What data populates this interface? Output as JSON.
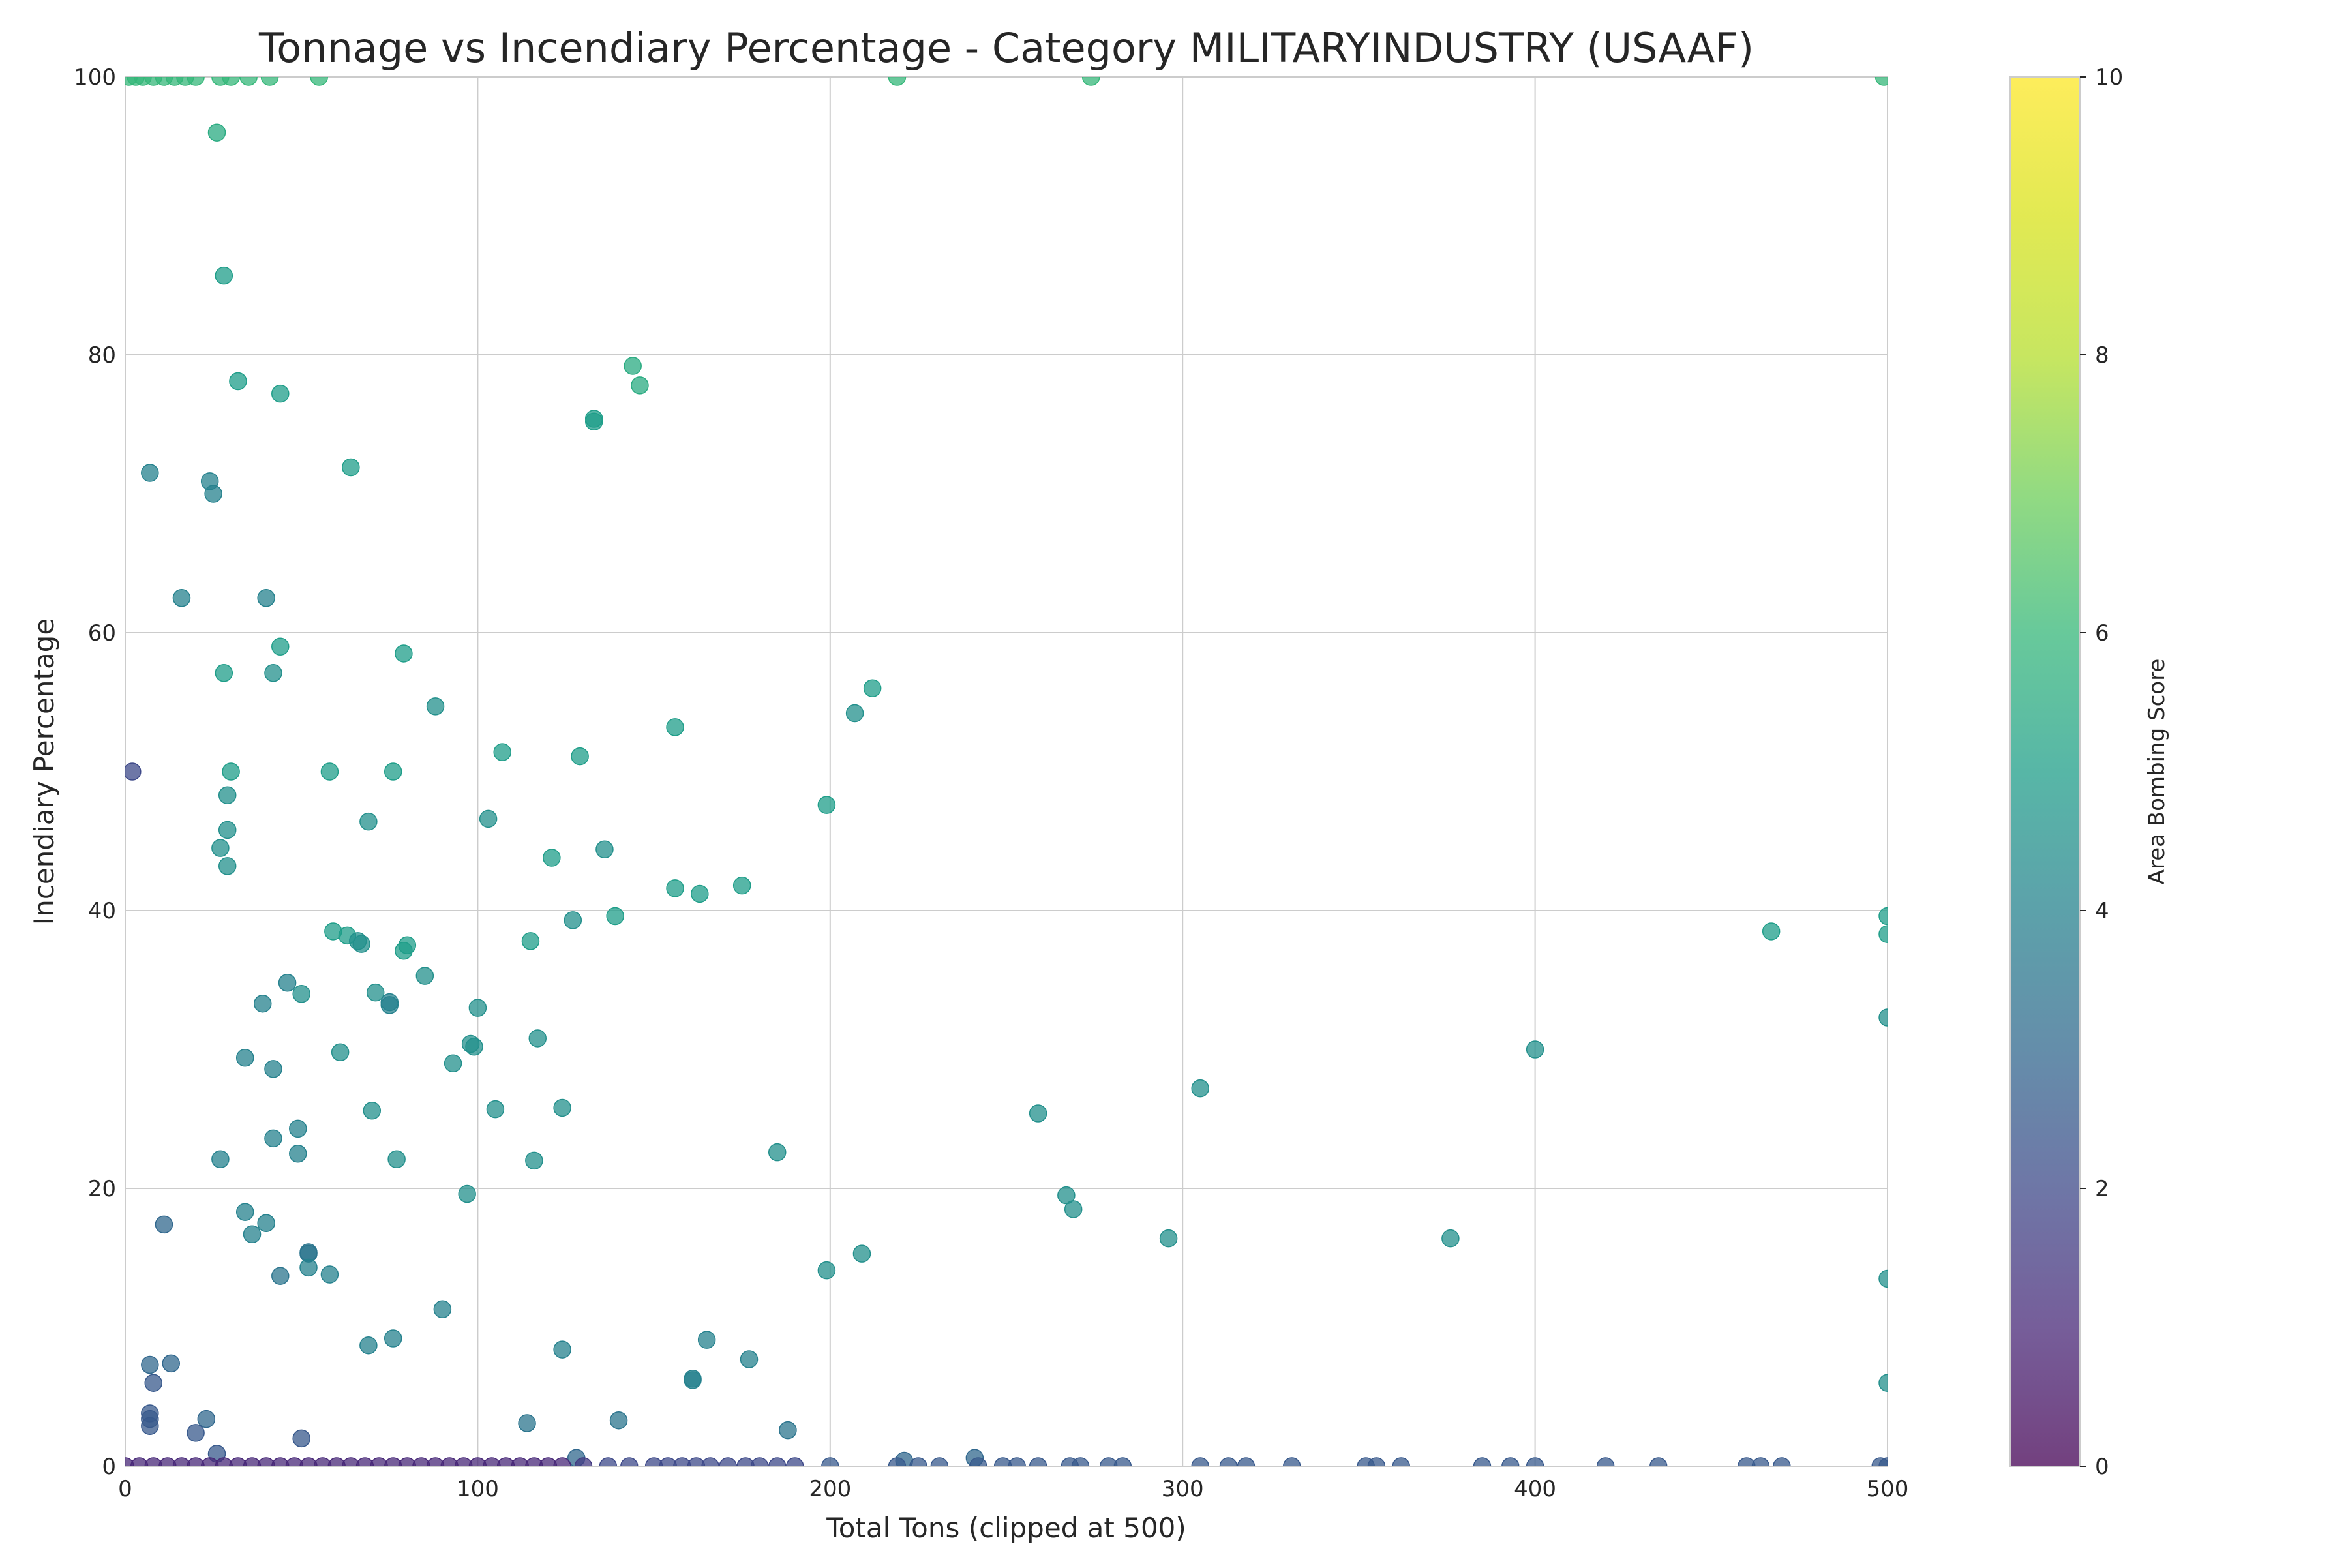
{
  "chart_data": {
    "type": "scatter",
    "title": "Tonnage vs Incendiary Percentage - Category MILITARYINDUSTRY (USAAF)",
    "xlabel": "Total Tons (clipped at 500)",
    "ylabel": "Incendiary Percentage",
    "xlim": [
      0,
      500
    ],
    "ylim": [
      0,
      100
    ],
    "xticks": [
      "0",
      "100",
      "200",
      "300",
      "400",
      "500"
    ],
    "yticks": [
      "0",
      "20",
      "40",
      "60",
      "80",
      "100"
    ],
    "grid": true,
    "colormap": "viridis",
    "colorbar": {
      "label": "Area Bombing Score",
      "range": [
        0,
        10
      ],
      "ticks": [
        "0",
        "2",
        "4",
        "6",
        "8",
        "10"
      ]
    },
    "points": [
      {
        "x": 1,
        "y": 100,
        "c": 6
      },
      {
        "x": 3,
        "y": 100,
        "c": 6
      },
      {
        "x": 5,
        "y": 100,
        "c": 6
      },
      {
        "x": 8,
        "y": 100,
        "c": 6
      },
      {
        "x": 11,
        "y": 100,
        "c": 6
      },
      {
        "x": 14,
        "y": 100,
        "c": 6
      },
      {
        "x": 17,
        "y": 100,
        "c": 6
      },
      {
        "x": 20,
        "y": 100,
        "c": 6
      },
      {
        "x": 27,
        "y": 100,
        "c": 6
      },
      {
        "x": 30,
        "y": 100,
        "c": 6
      },
      {
        "x": 35,
        "y": 100,
        "c": 6
      },
      {
        "x": 41,
        "y": 100,
        "c": 6
      },
      {
        "x": 55,
        "y": 100,
        "c": 6
      },
      {
        "x": 219,
        "y": 100,
        "c": 6
      },
      {
        "x": 274,
        "y": 100,
        "c": 6
      },
      {
        "x": 499,
        "y": 100,
        "c": 6
      },
      {
        "x": 26,
        "y": 96,
        "c": 5.5
      },
      {
        "x": 28,
        "y": 85.7,
        "c": 5
      },
      {
        "x": 144,
        "y": 79.2,
        "c": 5.5
      },
      {
        "x": 32,
        "y": 78.1,
        "c": 5
      },
      {
        "x": 146,
        "y": 77.8,
        "c": 5.5
      },
      {
        "x": 44,
        "y": 77.2,
        "c": 5
      },
      {
        "x": 133,
        "y": 75.4,
        "c": 5
      },
      {
        "x": 133,
        "y": 75.2,
        "c": 5
      },
      {
        "x": 64,
        "y": 71.9,
        "c": 5
      },
      {
        "x": 7,
        "y": 71.5,
        "c": 4
      },
      {
        "x": 24,
        "y": 70.9,
        "c": 4
      },
      {
        "x": 25,
        "y": 70,
        "c": 4
      },
      {
        "x": 16,
        "y": 62.5,
        "c": 4
      },
      {
        "x": 40,
        "y": 62.5,
        "c": 4
      },
      {
        "x": 44,
        "y": 59,
        "c": 5
      },
      {
        "x": 79,
        "y": 58.5,
        "c": 5
      },
      {
        "x": 28,
        "y": 57.1,
        "c": 5
      },
      {
        "x": 42,
        "y": 57.1,
        "c": 4.5
      },
      {
        "x": 212,
        "y": 56,
        "c": 5
      },
      {
        "x": 88,
        "y": 54.7,
        "c": 4.5
      },
      {
        "x": 207,
        "y": 54.2,
        "c": 4.5
      },
      {
        "x": 156,
        "y": 53.2,
        "c": 5
      },
      {
        "x": 107,
        "y": 51.4,
        "c": 5
      },
      {
        "x": 129,
        "y": 51.1,
        "c": 5
      },
      {
        "x": 2,
        "y": 50,
        "c": 2
      },
      {
        "x": 30,
        "y": 50,
        "c": 5
      },
      {
        "x": 58,
        "y": 50,
        "c": 5
      },
      {
        "x": 76,
        "y": 50,
        "c": 5
      },
      {
        "x": 29,
        "y": 48.3,
        "c": 4.5
      },
      {
        "x": 199,
        "y": 47.6,
        "c": 5
      },
      {
        "x": 103,
        "y": 46.6,
        "c": 4.5
      },
      {
        "x": 69,
        "y": 46.4,
        "c": 4.5
      },
      {
        "x": 29,
        "y": 45.8,
        "c": 4.5
      },
      {
        "x": 27,
        "y": 44.5,
        "c": 4.5
      },
      {
        "x": 136,
        "y": 44.4,
        "c": 4.5
      },
      {
        "x": 121,
        "y": 43.8,
        "c": 5
      },
      {
        "x": 29,
        "y": 43.2,
        "c": 4.5
      },
      {
        "x": 175,
        "y": 41.8,
        "c": 5
      },
      {
        "x": 156,
        "y": 41.6,
        "c": 5
      },
      {
        "x": 163,
        "y": 41.2,
        "c": 5
      },
      {
        "x": 139,
        "y": 39.6,
        "c": 5
      },
      {
        "x": 500,
        "y": 39.6,
        "c": 5
      },
      {
        "x": 127,
        "y": 39.3,
        "c": 4.5
      },
      {
        "x": 59,
        "y": 38.5,
        "c": 5
      },
      {
        "x": 467,
        "y": 38.5,
        "c": 5
      },
      {
        "x": 500,
        "y": 38.3,
        "c": 5
      },
      {
        "x": 63,
        "y": 38.2,
        "c": 5
      },
      {
        "x": 66,
        "y": 37.8,
        "c": 4.5
      },
      {
        "x": 67,
        "y": 37.6,
        "c": 4.5
      },
      {
        "x": 115,
        "y": 37.8,
        "c": 5
      },
      {
        "x": 80,
        "y": 37.5,
        "c": 5
      },
      {
        "x": 79,
        "y": 37.1,
        "c": 5
      },
      {
        "x": 85,
        "y": 35.3,
        "c": 4.5
      },
      {
        "x": 46,
        "y": 34.8,
        "c": 4
      },
      {
        "x": 71,
        "y": 34.1,
        "c": 4.5
      },
      {
        "x": 50,
        "y": 34,
        "c": 4.5
      },
      {
        "x": 39,
        "y": 33.3,
        "c": 4
      },
      {
        "x": 75,
        "y": 33.4,
        "c": 4
      },
      {
        "x": 75,
        "y": 33.2,
        "c": 4
      },
      {
        "x": 100,
        "y": 33,
        "c": 4.5
      },
      {
        "x": 500,
        "y": 32.3,
        "c": 4.5
      },
      {
        "x": 117,
        "y": 30.8,
        "c": 4.5
      },
      {
        "x": 98,
        "y": 30.4,
        "c": 4.5
      },
      {
        "x": 99,
        "y": 30.2,
        "c": 4.5
      },
      {
        "x": 400,
        "y": 30,
        "c": 4.5
      },
      {
        "x": 61,
        "y": 29.8,
        "c": 4.5
      },
      {
        "x": 34,
        "y": 29.4,
        "c": 4
      },
      {
        "x": 93,
        "y": 29,
        "c": 4.5
      },
      {
        "x": 42,
        "y": 28.6,
        "c": 4
      },
      {
        "x": 305,
        "y": 27.2,
        "c": 4.5
      },
      {
        "x": 124,
        "y": 25.8,
        "c": 4.5
      },
      {
        "x": 105,
        "y": 25.7,
        "c": 4.5
      },
      {
        "x": 70,
        "y": 25.6,
        "c": 4.5
      },
      {
        "x": 259,
        "y": 25.4,
        "c": 4.5
      },
      {
        "x": 49,
        "y": 24.3,
        "c": 4
      },
      {
        "x": 42,
        "y": 23.6,
        "c": 4
      },
      {
        "x": 185,
        "y": 22.6,
        "c": 4.5
      },
      {
        "x": 49,
        "y": 22.5,
        "c": 4
      },
      {
        "x": 27,
        "y": 22.1,
        "c": 4
      },
      {
        "x": 77,
        "y": 22.1,
        "c": 4.5
      },
      {
        "x": 116,
        "y": 22,
        "c": 4.5
      },
      {
        "x": 97,
        "y": 19.6,
        "c": 4.5
      },
      {
        "x": 267,
        "y": 19.5,
        "c": 4.5
      },
      {
        "x": 269,
        "y": 18.5,
        "c": 4.5
      },
      {
        "x": 34,
        "y": 18.3,
        "c": 4
      },
      {
        "x": 40,
        "y": 17.5,
        "c": 4
      },
      {
        "x": 11,
        "y": 17.4,
        "c": 3
      },
      {
        "x": 36,
        "y": 16.7,
        "c": 4
      },
      {
        "x": 296,
        "y": 16.4,
        "c": 4.5
      },
      {
        "x": 376,
        "y": 16.4,
        "c": 4.5
      },
      {
        "x": 52,
        "y": 15.4,
        "c": 3.5
      },
      {
        "x": 52,
        "y": 15.3,
        "c": 3.5
      },
      {
        "x": 209,
        "y": 15.3,
        "c": 4.5
      },
      {
        "x": 52,
        "y": 14.3,
        "c": 4
      },
      {
        "x": 199,
        "y": 14.1,
        "c": 4.5
      },
      {
        "x": 58,
        "y": 13.8,
        "c": 4
      },
      {
        "x": 44,
        "y": 13.7,
        "c": 3.5
      },
      {
        "x": 500,
        "y": 13.5,
        "c": 4.5
      },
      {
        "x": 90,
        "y": 11.3,
        "c": 4
      },
      {
        "x": 165,
        "y": 9.1,
        "c": 4
      },
      {
        "x": 76,
        "y": 9.2,
        "c": 4
      },
      {
        "x": 69,
        "y": 8.7,
        "c": 4
      },
      {
        "x": 124,
        "y": 8.4,
        "c": 4
      },
      {
        "x": 177,
        "y": 7.7,
        "c": 4
      },
      {
        "x": 13,
        "y": 7.4,
        "c": 3
      },
      {
        "x": 7,
        "y": 7.3,
        "c": 3
      },
      {
        "x": 161,
        "y": 6.2,
        "c": 4
      },
      {
        "x": 161,
        "y": 6.3,
        "c": 4
      },
      {
        "x": 8,
        "y": 6,
        "c": 2.5
      },
      {
        "x": 500,
        "y": 6,
        "c": 4.5
      },
      {
        "x": 7,
        "y": 3.8,
        "c": 2.5
      },
      {
        "x": 7,
        "y": 3.4,
        "c": 2.5
      },
      {
        "x": 23,
        "y": 3.4,
        "c": 3
      },
      {
        "x": 140,
        "y": 3.3,
        "c": 3.5
      },
      {
        "x": 114,
        "y": 3.1,
        "c": 3.5
      },
      {
        "x": 7,
        "y": 2.9,
        "c": 2.5
      },
      {
        "x": 188,
        "y": 2.6,
        "c": 3.5
      },
      {
        "x": 20,
        "y": 2.4,
        "c": 2.5
      },
      {
        "x": 50,
        "y": 2,
        "c": 2.5
      },
      {
        "x": 26,
        "y": 0.9,
        "c": 2.5
      },
      {
        "x": 128,
        "y": 0.6,
        "c": 3
      },
      {
        "x": 241,
        "y": 0.6,
        "c": 3
      },
      {
        "x": 221,
        "y": 0.4,
        "c": 3
      },
      {
        "x": 0,
        "y": 0,
        "c": 1
      },
      {
        "x": 4,
        "y": 0,
        "c": 1
      },
      {
        "x": 8,
        "y": 0,
        "c": 1
      },
      {
        "x": 12,
        "y": 0,
        "c": 1
      },
      {
        "x": 16,
        "y": 0,
        "c": 1
      },
      {
        "x": 20,
        "y": 0,
        "c": 1
      },
      {
        "x": 24,
        "y": 0,
        "c": 1
      },
      {
        "x": 28,
        "y": 0,
        "c": 1
      },
      {
        "x": 32,
        "y": 0,
        "c": 1
      },
      {
        "x": 36,
        "y": 0,
        "c": 1
      },
      {
        "x": 40,
        "y": 0,
        "c": 1
      },
      {
        "x": 44,
        "y": 0,
        "c": 1
      },
      {
        "x": 48,
        "y": 0,
        "c": 1
      },
      {
        "x": 52,
        "y": 0,
        "c": 1
      },
      {
        "x": 56,
        "y": 0,
        "c": 1
      },
      {
        "x": 60,
        "y": 0,
        "c": 1
      },
      {
        "x": 64,
        "y": 0,
        "c": 1
      },
      {
        "x": 68,
        "y": 0,
        "c": 1
      },
      {
        "x": 72,
        "y": 0,
        "c": 1
      },
      {
        "x": 76,
        "y": 0,
        "c": 1
      },
      {
        "x": 80,
        "y": 0,
        "c": 1
      },
      {
        "x": 84,
        "y": 0,
        "c": 1
      },
      {
        "x": 88,
        "y": 0,
        "c": 1
      },
      {
        "x": 92,
        "y": 0,
        "c": 1
      },
      {
        "x": 96,
        "y": 0,
        "c": 1
      },
      {
        "x": 100,
        "y": 0,
        "c": 1
      },
      {
        "x": 104,
        "y": 0,
        "c": 1
      },
      {
        "x": 108,
        "y": 0,
        "c": 1
      },
      {
        "x": 112,
        "y": 0,
        "c": 1
      },
      {
        "x": 116,
        "y": 0,
        "c": 1
      },
      {
        "x": 120,
        "y": 0,
        "c": 1
      },
      {
        "x": 124,
        "y": 0,
        "c": 1
      },
      {
        "x": 130,
        "y": 0,
        "c": 1.5
      },
      {
        "x": 137,
        "y": 0,
        "c": 2
      },
      {
        "x": 143,
        "y": 0,
        "c": 2
      },
      {
        "x": 150,
        "y": 0,
        "c": 2
      },
      {
        "x": 154,
        "y": 0,
        "c": 2
      },
      {
        "x": 158,
        "y": 0,
        "c": 2
      },
      {
        "x": 162,
        "y": 0,
        "c": 2
      },
      {
        "x": 166,
        "y": 0,
        "c": 2
      },
      {
        "x": 171,
        "y": 0,
        "c": 2
      },
      {
        "x": 176,
        "y": 0,
        "c": 2
      },
      {
        "x": 180,
        "y": 0,
        "c": 2
      },
      {
        "x": 185,
        "y": 0,
        "c": 2
      },
      {
        "x": 190,
        "y": 0,
        "c": 2
      },
      {
        "x": 200,
        "y": 0,
        "c": 2.5
      },
      {
        "x": 219,
        "y": 0,
        "c": 2.5
      },
      {
        "x": 225,
        "y": 0,
        "c": 2.5
      },
      {
        "x": 231,
        "y": 0,
        "c": 2.5
      },
      {
        "x": 242,
        "y": 0,
        "c": 2.5
      },
      {
        "x": 249,
        "y": 0,
        "c": 2.5
      },
      {
        "x": 253,
        "y": 0,
        "c": 2.5
      },
      {
        "x": 259,
        "y": 0,
        "c": 2.5
      },
      {
        "x": 268,
        "y": 0,
        "c": 2.5
      },
      {
        "x": 271,
        "y": 0,
        "c": 2.5
      },
      {
        "x": 279,
        "y": 0,
        "c": 2.5
      },
      {
        "x": 283,
        "y": 0,
        "c": 2.5
      },
      {
        "x": 305,
        "y": 0,
        "c": 2.5
      },
      {
        "x": 313,
        "y": 0,
        "c": 2.5
      },
      {
        "x": 318,
        "y": 0,
        "c": 2.5
      },
      {
        "x": 331,
        "y": 0,
        "c": 2.5
      },
      {
        "x": 352,
        "y": 0,
        "c": 2.5
      },
      {
        "x": 355,
        "y": 0,
        "c": 2.5
      },
      {
        "x": 362,
        "y": 0,
        "c": 2.5
      },
      {
        "x": 385,
        "y": 0,
        "c": 2.5
      },
      {
        "x": 393,
        "y": 0,
        "c": 2.5
      },
      {
        "x": 400,
        "y": 0,
        "c": 2.5
      },
      {
        "x": 420,
        "y": 0,
        "c": 2.5
      },
      {
        "x": 435,
        "y": 0,
        "c": 2.5
      },
      {
        "x": 460,
        "y": 0,
        "c": 2.5
      },
      {
        "x": 464,
        "y": 0,
        "c": 2.5
      },
      {
        "x": 470,
        "y": 0,
        "c": 2.5
      },
      {
        "x": 498,
        "y": 0,
        "c": 2.5
      },
      {
        "x": 500,
        "y": 0,
        "c": 2.5
      }
    ]
  }
}
